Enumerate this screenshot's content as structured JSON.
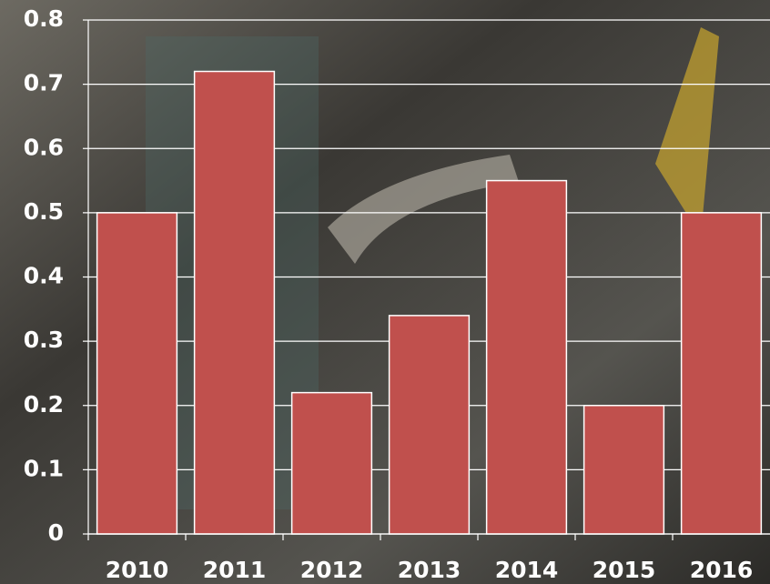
{
  "chart_data": {
    "type": "bar",
    "categories": [
      "2010",
      "2011",
      "2012",
      "2013",
      "2014",
      "2015",
      "2016"
    ],
    "values": [
      0.5,
      0.72,
      0.22,
      0.34,
      0.55,
      0.2,
      0.5
    ],
    "color": "#c0504d",
    "ylim": [
      0,
      0.8
    ],
    "yticks": [
      0,
      0.1,
      0.2,
      0.3,
      0.4,
      0.5,
      0.6,
      0.7,
      0.8
    ],
    "grid": true
  }
}
